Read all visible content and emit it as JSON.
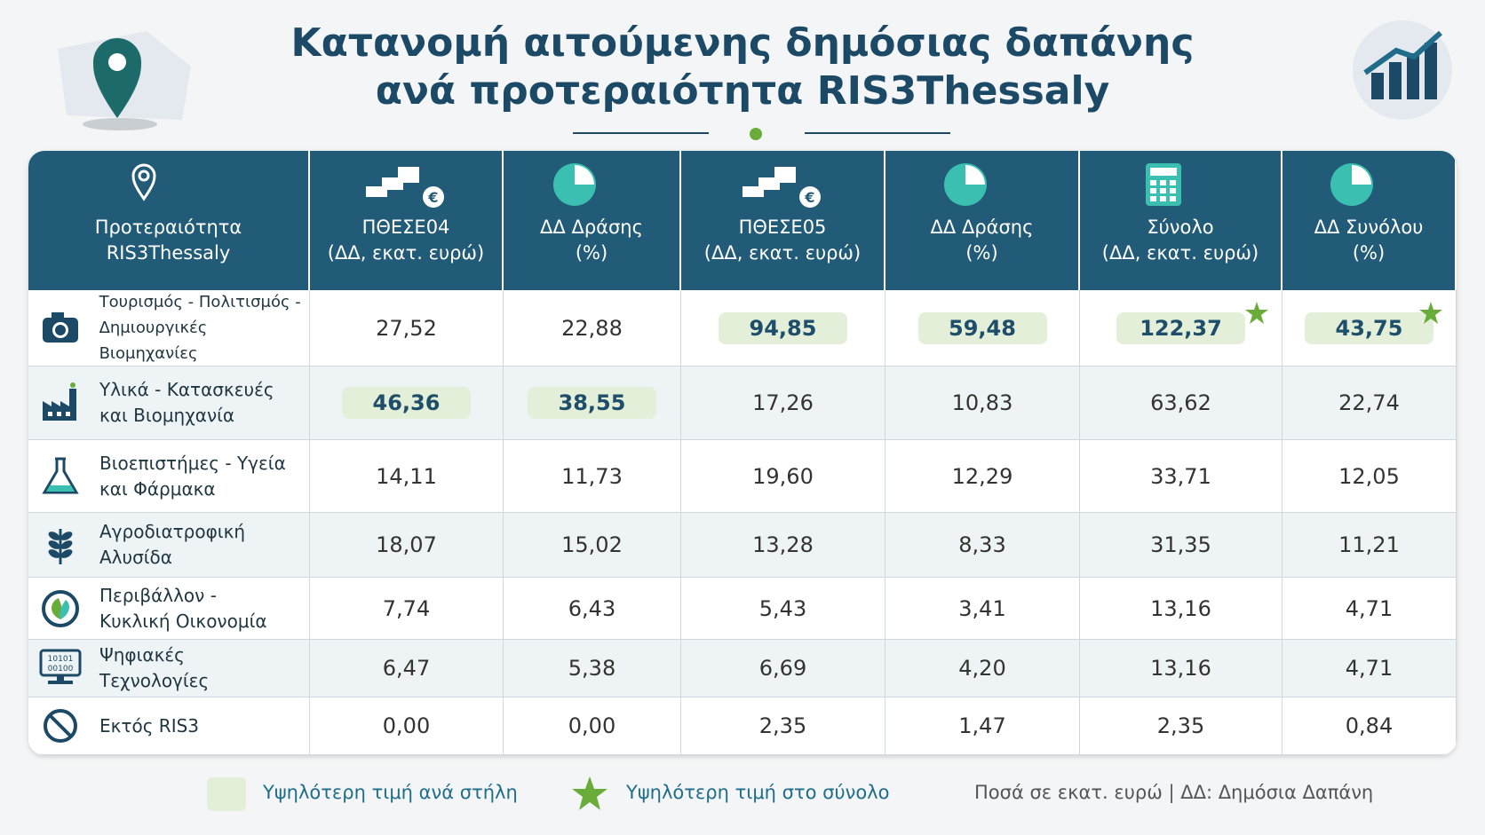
{
  "header": {
    "title": "Κατανομή αιτούμενης δημόσιας δαπάνης ανά προτεραιότητα RIS3Thessaly"
  },
  "table": {
    "columns": [
      [
        "Προτεραιότητα",
        "RIS3Thessaly"
      ],
      [
        "ΠΘΕΣΕ04",
        "(ΔΔ, εκατ. ευρώ)"
      ],
      [
        "ΔΔ Δράσης",
        "(%)"
      ],
      [
        "ΠΘΕΣΕ05",
        "(ΔΔ, εκατ. ευρώ)"
      ],
      [
        "ΔΔ Δράσης",
        "(%)"
      ],
      [
        "Σύνολο",
        "(ΔΔ, εκατ. ευρώ)"
      ],
      [
        "ΔΔ Συνόλου",
        "(%)"
      ]
    ],
    "rows": [
      {
        "label": [
          "Τουρισμός - Πολιτισμός -",
          "Δημιουργικές Βιομηχανίες"
        ],
        "cells": [
          "27,52",
          "22,88",
          "94,85",
          "59,48",
          "122,37",
          "43,75"
        ],
        "highlight": [
          2,
          3,
          4,
          5
        ],
        "star": [
          4,
          5
        ]
      },
      {
        "label": [
          "Υλικά - Κατασκευές",
          "και Βιομηχανία"
        ],
        "cells": [
          "46,36",
          "38,55",
          "17,26",
          "10,83",
          "63,62",
          "22,74"
        ],
        "highlight": [
          0,
          1
        ],
        "star": []
      },
      {
        "label": [
          "Βιοεπιστήμες - Υγεία",
          "και Φάρμακα"
        ],
        "cells": [
          "14,11",
          "11,73",
          "19,60",
          "12,29",
          "33,71",
          "12,05"
        ],
        "highlight": [],
        "star": []
      },
      {
        "label": [
          "Αγροδιατροφική",
          "Αλυσίδα"
        ],
        "cells": [
          "18,07",
          "15,02",
          "13,28",
          "8,33",
          "31,35",
          "11,21"
        ],
        "highlight": [],
        "star": []
      },
      {
        "label": [
          "Περιβάλλον -",
          "Κυκλική Οικονομία"
        ],
        "cells": [
          "7,74",
          "6,43",
          "5,43",
          "3,41",
          "13,16",
          "4,71"
        ],
        "highlight": [],
        "star": []
      },
      {
        "label": [
          "Ψηφιακές",
          "Τεχνολογίες"
        ],
        "cells": [
          "6,47",
          "5,38",
          "6,69",
          "4,20",
          "13,16",
          "4,71"
        ],
        "highlight": [],
        "star": []
      },
      {
        "label": [
          "Εκτός RIS3"
        ],
        "cells": [
          "0,00",
          "0,00",
          "2,35",
          "1,47",
          "2,35",
          "0,84"
        ],
        "highlight": [],
        "star": []
      }
    ]
  },
  "legend": {
    "highlight": "Υψηλότερη τιμή ανά στήλη",
    "star": "Υψηλότερη τιμή στο σύνολο",
    "note": "Ποσά σε εκατ. ευρώ | ΔΔ: Δημόσια Δαπάνη"
  }
}
